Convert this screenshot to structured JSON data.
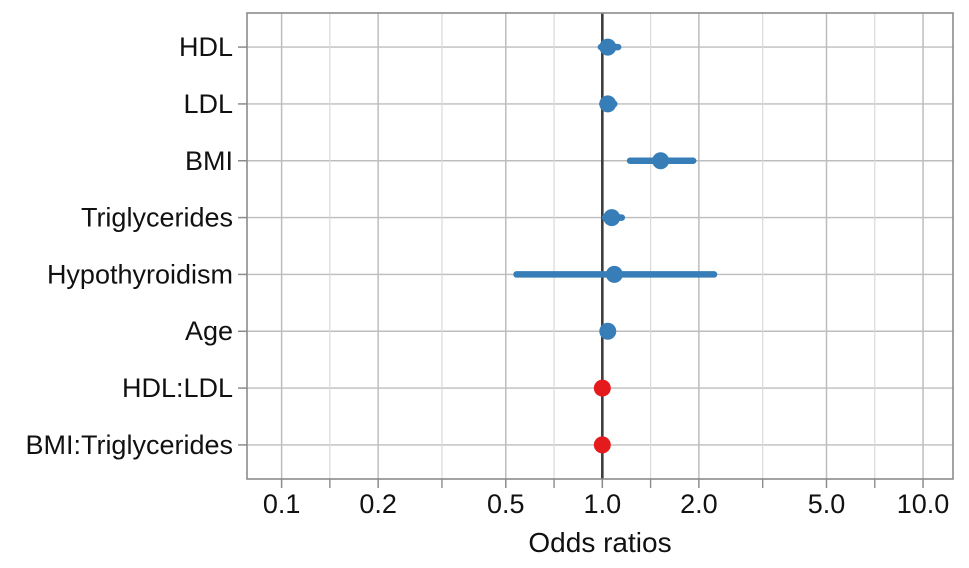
{
  "chart_data": {
    "type": "scatter",
    "subtype": "forest-plot",
    "title": "",
    "xlabel": "Odds ratios",
    "ylabel": "",
    "x_scale": "log10",
    "xlim": [
      0.078,
      12.4
    ],
    "grid": "on",
    "legend_position": "none",
    "reference_line": 1.0,
    "x_major_ticks": {
      "values": [
        0.1,
        0.2,
        0.5,
        1.0,
        2.0,
        5.0,
        10.0
      ],
      "labels": [
        "0.1",
        "0.2",
        "0.5",
        "1.0",
        "2.0",
        "5.0",
        "10.0"
      ]
    },
    "x_minor_ticks": [
      0.1414,
      0.3162,
      0.7071,
      1.4142,
      3.1623,
      7.0711
    ],
    "categories": [
      "HDL",
      "LDL",
      "BMI",
      "Triglycerides",
      "Hypothyroidism",
      "Age",
      "HDL:LDL",
      "BMI:Triglycerides"
    ],
    "points": [
      {
        "label": "HDL",
        "or": 1.04,
        "ci_low": 0.99,
        "ci_high": 1.12,
        "color_key": "positive"
      },
      {
        "label": "LDL",
        "or": 1.04,
        "ci_low": 1.0,
        "ci_high": 1.09,
        "color_key": "positive"
      },
      {
        "label": "BMI",
        "or": 1.52,
        "ci_low": 1.22,
        "ci_high": 1.92,
        "color_key": "positive"
      },
      {
        "label": "Triglycerides",
        "or": 1.07,
        "ci_low": 1.02,
        "ci_high": 1.15,
        "color_key": "positive"
      },
      {
        "label": "Hypothyroidism",
        "or": 1.09,
        "ci_low": 0.54,
        "ci_high": 2.23,
        "color_key": "positive"
      },
      {
        "label": "Age",
        "or": 1.04,
        "ci_low": 1.01,
        "ci_high": 1.07,
        "color_key": "positive"
      },
      {
        "label": "HDL:LDL",
        "or": 1.0,
        "ci_low": 0.99,
        "ci_high": 1.01,
        "color_key": "negative"
      },
      {
        "label": "BMI:Triglycerides",
        "or": 1.0,
        "ci_low": 0.99,
        "ci_high": 1.01,
        "color_key": "negative"
      }
    ],
    "colors": {
      "positive": "#377EB8",
      "negative": "#E41A1C",
      "grid_major": "#bdbdbd",
      "grid_minor": "#d9d9d9",
      "panel_border": "#8c8c8c",
      "reference_line": "#3d3d3d",
      "tick": "#8c8c8c",
      "text": "#111111",
      "background": "#ffffff"
    }
  }
}
